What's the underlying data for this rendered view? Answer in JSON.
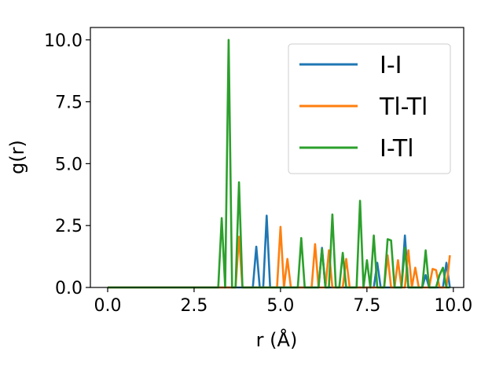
{
  "chart_data": {
    "type": "line",
    "title": "",
    "xlabel": "r (Å)",
    "ylabel": "g(r)",
    "xlim": [
      -0.5,
      10.3
    ],
    "ylim": [
      0,
      10.5
    ],
    "xticks": [
      0.0,
      2.5,
      5.0,
      7.5,
      10.0
    ],
    "yticks": [
      0.0,
      2.5,
      5.0,
      7.5,
      10.0
    ],
    "xtick_labels": [
      "0.0",
      "2.5",
      "5.0",
      "7.5",
      "10.0"
    ],
    "ytick_labels": [
      "0.0",
      "2.5",
      "5.0",
      "7.5",
      "10.0"
    ],
    "grid": false,
    "legend_position": "top-right",
    "series": [
      {
        "name": "I-I",
        "color": "#1f77b4",
        "x": [
          0.0,
          4.2,
          4.3,
          4.4,
          4.5,
          4.6,
          4.7,
          6.1,
          6.2,
          6.3,
          6.4,
          7.7,
          7.8,
          7.9,
          8.5,
          8.6,
          8.7,
          9.1,
          9.2,
          9.3,
          9.7,
          9.8,
          9.9
        ],
        "y": [
          0,
          0,
          1.65,
          0,
          0,
          2.9,
          0,
          0,
          1.6,
          0,
          0,
          0,
          1.0,
          0,
          0,
          2.1,
          0,
          0,
          0.5,
          0,
          0,
          1.0,
          0
        ]
      },
      {
        "name": "Tl-Tl",
        "color": "#ff7f0e",
        "x": [
          0.0,
          3.7,
          3.8,
          3.9,
          4.9,
          5.0,
          5.1,
          5.2,
          5.3,
          5.9,
          6.0,
          6.1,
          6.3,
          6.4,
          6.5,
          6.8,
          6.9,
          7.0,
          7.1,
          8.0,
          8.1,
          8.2,
          8.3,
          8.4,
          8.5,
          8.6,
          8.7,
          8.8,
          8.9,
          9.0,
          9.3,
          9.4,
          9.5,
          9.6,
          9.8,
          9.9
        ],
        "y": [
          0,
          0,
          2.05,
          0,
          0,
          2.45,
          0,
          1.15,
          0,
          0,
          1.75,
          0,
          0,
          1.5,
          0,
          0,
          1.15,
          0,
          0,
          0,
          1.3,
          0,
          0,
          1.1,
          0,
          0,
          1.5,
          0,
          0.8,
          0,
          0,
          0.75,
          0.7,
          0,
          0,
          1.3
        ]
      },
      {
        "name": "I-Tl",
        "color": "#2ca02c",
        "x": [
          0.0,
          3.2,
          3.3,
          3.4,
          3.5,
          3.6,
          3.7,
          3.8,
          3.9,
          5.4,
          5.5,
          5.6,
          5.7,
          6.0,
          6.1,
          6.2,
          6.3,
          6.4,
          6.5,
          6.6,
          6.7,
          6.8,
          6.9,
          7.2,
          7.3,
          7.4,
          7.5,
          7.6,
          7.7,
          7.8,
          8.0,
          8.1,
          8.2,
          8.3,
          8.5,
          8.6,
          8.7,
          9.0,
          9.1,
          9.2,
          9.3,
          9.5,
          9.6,
          9.7,
          9.8,
          9.9
        ],
        "y": [
          0,
          0,
          2.8,
          0,
          10.0,
          0,
          0,
          4.25,
          0,
          0,
          0,
          2.0,
          0,
          0,
          0,
          1.55,
          0,
          0,
          2.95,
          0,
          0,
          1.4,
          0,
          0,
          3.5,
          0,
          1.1,
          0,
          2.1,
          0,
          0,
          1.95,
          1.9,
          0,
          0,
          1.6,
          0,
          0,
          0,
          1.5,
          0,
          0,
          0.5,
          0.8,
          0,
          0
        ]
      }
    ]
  }
}
